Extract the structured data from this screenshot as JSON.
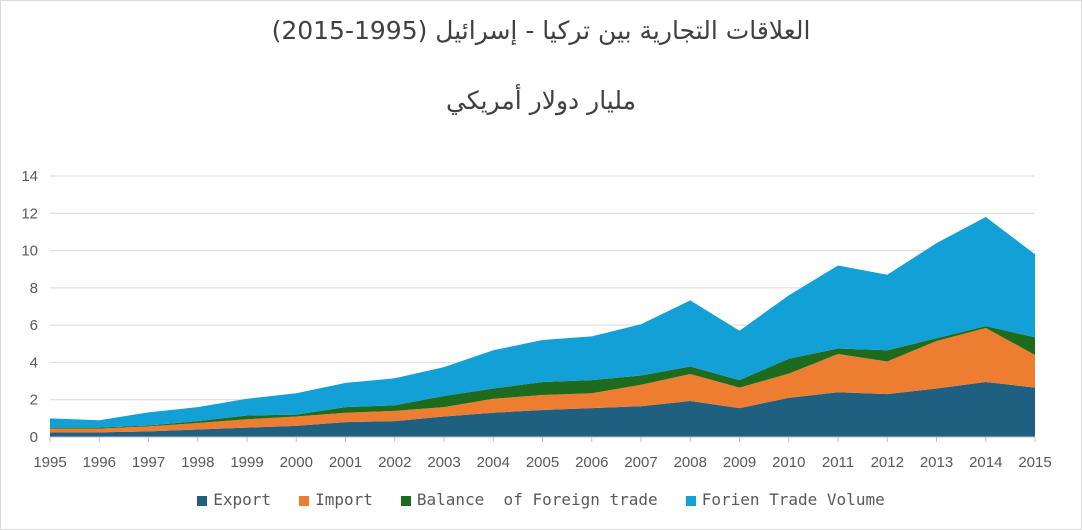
{
  "chart_data": {
    "type": "area",
    "stacked": true,
    "title": "العلاقات التجارية بين تركيا - إسرائيل (1995-2015)",
    "subtitle": "مليار دولار أمريكي",
    "xlabel": "",
    "ylabel": "",
    "ylim": [
      0,
      14
    ],
    "yticks": [
      0,
      2,
      4,
      6,
      8,
      10,
      12,
      14
    ],
    "grid": true,
    "legend_position": "bottom",
    "x": [
      "1995",
      "1996",
      "1997",
      "1998",
      "1999",
      "2000",
      "2001",
      "2002",
      "2003",
      "2004",
      "2005",
      "2006",
      "2007",
      "2008",
      "2009",
      "2010",
      "2011",
      "2012",
      "2013",
      "2014",
      "2015"
    ],
    "series": [
      {
        "name": "Export",
        "color": "#1f5f80",
        "values": [
          0.25,
          0.25,
          0.3,
          0.4,
          0.5,
          0.6,
          0.8,
          0.85,
          1.1,
          1.3,
          1.45,
          1.55,
          1.65,
          1.93,
          1.55,
          2.1,
          2.4,
          2.3,
          2.6,
          2.95,
          2.65
        ]
      },
      {
        "name": "Import",
        "color": "#ed7d31",
        "values": [
          0.2,
          0.2,
          0.27,
          0.35,
          0.45,
          0.5,
          0.5,
          0.55,
          0.5,
          0.75,
          0.8,
          0.8,
          1.15,
          1.45,
          1.1,
          1.3,
          2.05,
          1.75,
          2.55,
          2.9,
          1.75
        ]
      },
      {
        "name": "Balance  of Foreign trade",
        "color": "#1e6b1e",
        "values": [
          0.05,
          0.05,
          0.05,
          0.1,
          0.2,
          0.1,
          0.3,
          0.3,
          0.6,
          0.55,
          0.7,
          0.7,
          0.5,
          0.4,
          0.4,
          0.8,
          0.3,
          0.6,
          0.15,
          0.1,
          0.95
        ]
      },
      {
        "name": "Forien Trade Volume",
        "color": "#12a0d6",
        "values": [
          0.5,
          0.4,
          0.7,
          0.75,
          0.9,
          1.15,
          1.3,
          1.45,
          1.55,
          2.05,
          2.25,
          2.35,
          2.75,
          3.55,
          2.65,
          3.4,
          4.45,
          4.05,
          5.1,
          5.85,
          4.45
        ]
      }
    ]
  }
}
